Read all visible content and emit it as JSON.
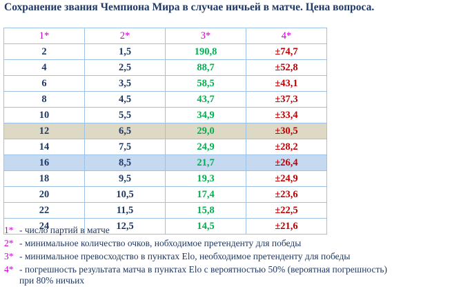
{
  "title": "Сохранение звания Чемпиона Мира в случае ничьей в матче. Цена вопроса.",
  "table": {
    "header": [
      "1*",
      "2*",
      "3*",
      "4*"
    ],
    "rows": [
      [
        "2",
        "1,5",
        "190,8",
        "±74,7"
      ],
      [
        "4",
        "2,5",
        "88,7",
        "±52,8"
      ],
      [
        "6",
        "3,5",
        "58,5",
        "±43,1"
      ],
      [
        "8",
        "4,5",
        "43,7",
        "±37,3"
      ],
      [
        "10",
        "5,5",
        "34,9",
        "±33,4"
      ],
      [
        "12",
        "6,5",
        "29,0",
        "±30,5"
      ],
      [
        "14",
        "7,5",
        "24,9",
        "±28,2"
      ],
      [
        "16",
        "8,5",
        "21,7",
        "±26,4"
      ],
      [
        "18",
        "9,5",
        "19,3",
        "±24,9"
      ],
      [
        "20",
        "10,5",
        "17,4",
        "±23,6"
      ],
      [
        "22",
        "11,5",
        "15,8",
        "±22,5"
      ],
      [
        "24",
        "12,5",
        "14,5",
        "±21,6"
      ]
    ],
    "column_colors": [
      "#1f3864",
      "#1f3864",
      "#00b050",
      "#c00000"
    ],
    "row_highlights": [
      {
        "row": 5,
        "color": "#ddd9c4"
      },
      {
        "row": 7,
        "color": "#c5d9f1"
      }
    ]
  },
  "footnotes": [
    {
      "marker": "1*",
      "lines": [
        "- число партий в матче"
      ]
    },
    {
      "marker": "2*",
      "lines": [
        "- минимальное количество очков, нобходимое претенденту для победы"
      ]
    },
    {
      "marker": "3*",
      "lines": [
        "- минимальное превосходство в пунктах Elo, необходимое претенденту для победы"
      ]
    },
    {
      "marker": "4*",
      "lines": [
        "- погрешность результата матча в пунктах Elo с вероятностью 50% (вероятная погрешность)",
        "при 80% ничьих"
      ]
    }
  ]
}
